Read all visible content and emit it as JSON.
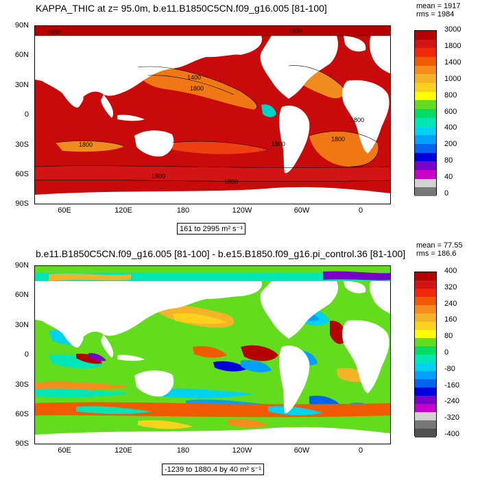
{
  "panel1": {
    "title": "KAPPA_THIC at z=  95.0m, b.e11.B1850C5CN.f09_g16.005 [81-100]",
    "mean": "mean = 1917",
    "rms": "rms = 1984",
    "range": "161 to 2995 m² s⁻¹",
    "lat_labels": [
      "90N",
      "60N",
      "30N",
      "0",
      "30S",
      "60S",
      "90S"
    ],
    "lon_labels": [
      "60E",
      "120E",
      "180",
      "120W",
      "60W",
      "0"
    ],
    "contour_labels": [
      "1800",
      "1800",
      "1400",
      "1800",
      "1800",
      "1800",
      "1800",
      "1800",
      "1800",
      "1800"
    ],
    "colorbar": {
      "labels": [
        "3000",
        "1800",
        "1400",
        "1000",
        "800",
        "600",
        "400",
        "200",
        "80",
        "40",
        "0"
      ],
      "colors": [
        "#b40000",
        "#d21414",
        "#f0280a",
        "#f05a00",
        "#f58c1e",
        "#f5b428",
        "#fad21e",
        "#ffff00",
        "#64dc1e",
        "#00dc64",
        "#00e6b4",
        "#00d2f0",
        "#00a0ff",
        "#0064f0",
        "#0000dc",
        "#7800c8",
        "#c800c8",
        "#d2d2d2",
        "#787878"
      ]
    }
  },
  "panel2": {
    "title": "b.e11.B1850C5CN.f09_g16.005 [81-100] - b.e15.B1850.f09_g16.pi_control.36 [81-100]",
    "mean": "mean = 77.55",
    "rms": "rms = 186.6",
    "range": "-1239 to 1880.4 by 40 m² s⁻¹",
    "lat_labels": [
      "90N",
      "60N",
      "30N",
      "0",
      "30S",
      "60S",
      "90S"
    ],
    "lon_labels": [
      "60E",
      "120E",
      "180",
      "120W",
      "60W",
      "0"
    ],
    "colorbar": {
      "labels": [
        "400",
        "320",
        "240",
        "160",
        "80",
        "0",
        "-80",
        "-160",
        "-240",
        "-320",
        "-400"
      ],
      "colors": [
        "#b40000",
        "#d21414",
        "#f0280a",
        "#f05a00",
        "#f58c1e",
        "#f5b428",
        "#fad21e",
        "#ffff00",
        "#64dc1e",
        "#00dc64",
        "#00e6b4",
        "#00d2f0",
        "#00a0ff",
        "#0064f0",
        "#0000dc",
        "#7800c8",
        "#c800c8",
        "#d2d2d2",
        "#787878",
        "#505050"
      ]
    }
  }
}
